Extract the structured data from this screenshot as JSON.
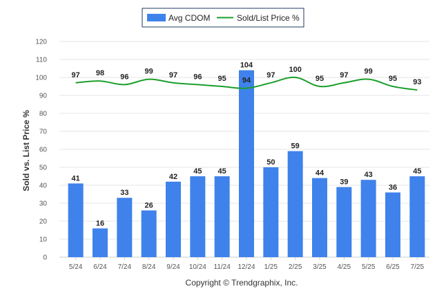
{
  "chart_data": {
    "type": "bar",
    "categories": [
      "5/24",
      "6/24",
      "7/24",
      "8/24",
      "9/24",
      "10/24",
      "11/24",
      "12/24",
      "1/25",
      "2/25",
      "3/25",
      "4/25",
      "5/25",
      "6/25",
      "7/25"
    ],
    "series": [
      {
        "name": "Avg CDOM",
        "type": "bar",
        "color": "#3f82ec",
        "values": [
          41,
          16,
          33,
          26,
          42,
          45,
          45,
          104,
          50,
          59,
          44,
          39,
          43,
          36,
          45
        ]
      },
      {
        "name": "Sold/List Price %",
        "type": "line",
        "color": "#1a9e2a",
        "values": [
          97,
          98,
          96,
          99,
          97,
          96,
          95,
          94,
          97,
          100,
          95,
          97,
          99,
          95,
          93
        ]
      }
    ],
    "ylabel": "Sold vs. List Price %",
    "xlabel": "",
    "ylim": [
      0,
      120
    ],
    "yticks": [
      0,
      10,
      20,
      30,
      40,
      50,
      60,
      70,
      80,
      90,
      100,
      110,
      120
    ],
    "grid": true,
    "legend_position": "top-center"
  },
  "footer": {
    "copyright": "Copyright © Trendgraphix, Inc."
  }
}
